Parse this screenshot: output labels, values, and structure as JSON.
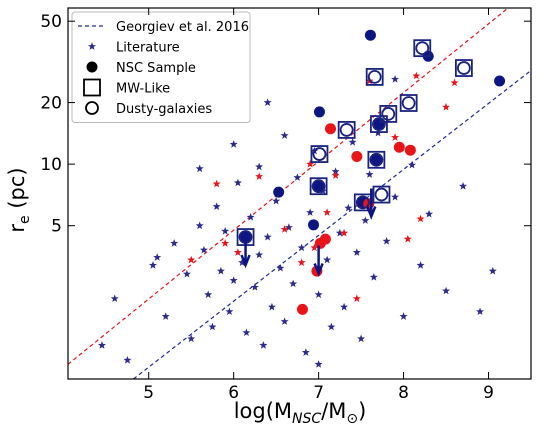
{
  "chart_data": {
    "type": "scatter",
    "xlim": [
      4.05,
      9.5
    ],
    "ylim": [
      0.89,
      58
    ],
    "ylog": true,
    "xticks": [
      5,
      6,
      7,
      8,
      9
    ],
    "yticks": [
      5,
      10,
      20,
      50
    ],
    "xlabel": [
      "log(M",
      "NSC",
      "/M",
      "⊙",
      ")"
    ],
    "ylabel": [
      "r",
      "e",
      " (pc)"
    ],
    "legend": "upper left",
    "legend_color": "#000000",
    "lines": [
      {
        "name": "Georgiev et al. 2016",
        "color": "#1f2a9a",
        "x": [
          4.82,
          9.5
        ],
        "values": [
          0.89,
          28.7
        ]
      },
      {
        "color": "#e8141a",
        "x": [
          4.05,
          9.23
        ],
        "values": [
          1.05,
          58
        ]
      }
    ],
    "series": [
      {
        "name": "Literature",
        "marker": "star",
        "color": "#2b2b8c",
        "x": [
          4.45,
          4.6,
          4.75,
          5.05,
          5.1,
          5.2,
          5.3,
          5.35,
          5.45,
          5.5,
          5.6,
          5.65,
          5.7,
          5.75,
          5.8,
          5.85,
          5.9,
          5.95,
          6.0,
          6.0,
          6.05,
          6.1,
          6.15,
          6.2,
          6.25,
          6.3,
          6.3,
          6.35,
          6.4,
          6.45,
          6.5,
          6.55,
          6.6,
          6.6,
          6.65,
          6.7,
          6.75,
          6.8,
          6.85,
          6.9,
          6.95,
          7.0,
          7.05,
          7.1,
          7.15,
          7.2,
          7.25,
          7.3,
          7.35,
          7.4,
          7.45,
          7.5,
          7.55,
          7.6,
          7.65,
          7.7,
          7.8,
          7.9,
          8.0,
          8.1,
          8.2,
          8.3,
          8.5,
          8.7,
          8.9,
          9.05,
          7.9,
          7.0,
          5.6,
          6.4
        ],
        "values": [
          1.3,
          2.2,
          1.1,
          3.2,
          3.5,
          1.8,
          4.1,
          16.5,
          2.9,
          1.4,
          5.0,
          3.8,
          2.3,
          1.6,
          6.2,
          3.0,
          4.7,
          1.9,
          12.5,
          2.7,
          8.1,
          3.3,
          1.5,
          5.5,
          2.5,
          9.7,
          3.6,
          1.3,
          4.4,
          2.0,
          6.6,
          3.1,
          13.8,
          1.7,
          4.9,
          2.6,
          8.6,
          3.9,
          1.2,
          5.8,
          11.6,
          2.3,
          7.4,
          3.4,
          1.6,
          9.2,
          4.6,
          2.0,
          6.1,
          12.8,
          3.7,
          1.4,
          5.3,
          8.9,
          2.8,
          14.2,
          4.2,
          6.9,
          1.8,
          9.9,
          3.2,
          5.7,
          2.4,
          7.8,
          1.9,
          3.0,
          26,
          1.05,
          9.5,
          20
        ]
      },
      {
        "marker": "star",
        "color": "#e8141a",
        "x": [
          5.5,
          5.8,
          5.9,
          6.05,
          6.3,
          6.6,
          6.8,
          6.9,
          7.1,
          7.3,
          7.6,
          7.2,
          7.9,
          8.05,
          8.2,
          8.5,
          7.45,
          6.95,
          8.6,
          8.15
        ],
        "values": [
          3.4,
          8.0,
          4.1,
          3.7,
          8.7,
          4.8,
          3.3,
          10.0,
          5.8,
          4.6,
          25.5,
          8.8,
          13.5,
          4.3,
          5.4,
          19,
          2.2,
          3.9,
          25,
          27
        ]
      },
      {
        "name": "NSC Sample",
        "marker": "circle",
        "colors": [
          "#0d1680",
          "#0d1680",
          "#0d1680",
          "#0d1680",
          "#0d1680",
          "#0d1680",
          "#0d1680",
          "#0d1680",
          "#0d1680",
          "#0d1680",
          "#0d1680",
          "#e8141a",
          "#e8141a",
          "#e8141a",
          "#e8141a",
          "#e8141a",
          "#e8141a",
          "#e8141a",
          "#e8141a",
          "#e8141a"
        ],
        "x": [
          7.61,
          7.01,
          6.53,
          7.0,
          6.94,
          9.13,
          6.14,
          7.52,
          7.68,
          7.71,
          8.29,
          7.14,
          7.45,
          7.95,
          8.08,
          7.59,
          7.02,
          7.08,
          6.98,
          6.81
        ],
        "values": [
          42.7,
          18,
          7.3,
          7.8,
          5.05,
          25.5,
          4.4,
          6.5,
          10.5,
          15.7,
          33.7,
          14.9,
          10.9,
          12.1,
          11.7,
          6.4,
          4.1,
          4.3,
          3.0,
          1.95
        ]
      },
      {
        "name": "MW-Like",
        "marker": "square",
        "color": "#1a237e",
        "x": [
          6.14,
          7.0,
          7.01,
          7.33,
          7.52,
          7.66,
          7.68,
          7.71,
          7.74,
          7.82,
          8.06,
          8.22,
          8.71
        ],
        "values": [
          4.4,
          7.8,
          11.2,
          14.7,
          6.5,
          26.7,
          10.5,
          15.7,
          7.1,
          17.6,
          19.9,
          36.9,
          29.5
        ]
      },
      {
        "name": "Dusty-galaxies",
        "marker": "open-circle",
        "color": "#1a237e",
        "x": [
          7.01,
          7.33,
          7.66,
          7.74,
          7.82,
          8.06,
          8.22,
          8.71,
          7.71,
          7.68,
          7.52,
          6.14,
          7.0
        ],
        "values": [
          11.2,
          14.7,
          26.7,
          7.1,
          17.6,
          19.9,
          36.9,
          29.5,
          15.7,
          10.5,
          6.5,
          4.4,
          7.8
        ]
      },
      {
        "marker": "arrow",
        "color": "#0d1680",
        "x": [
          6.14,
          7.0,
          7.62
        ],
        "values": [
          4.4,
          4.0,
          7.6
        ]
      }
    ]
  }
}
